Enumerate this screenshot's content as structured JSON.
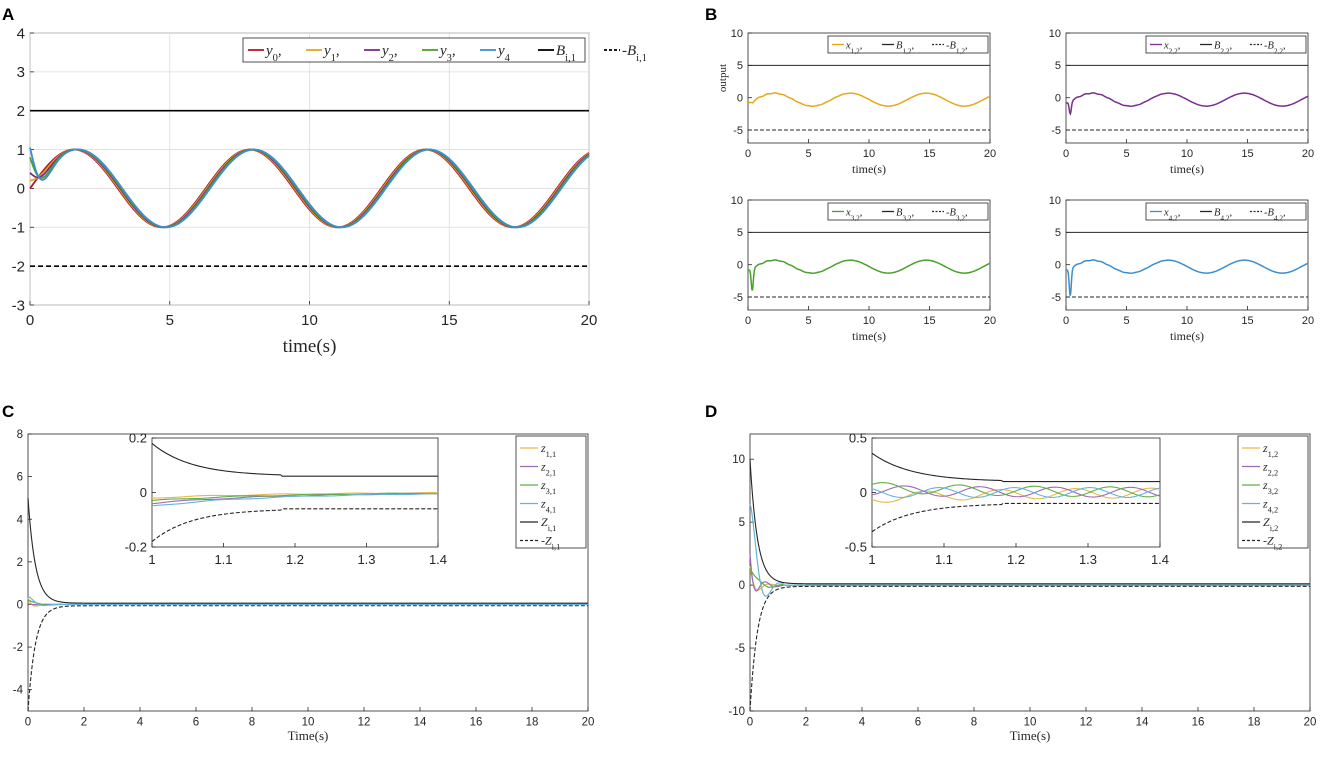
{
  "chart_data": [
    {
      "id": "A",
      "panel_letter": "A",
      "type": "line",
      "xlabel": "time(s)",
      "ylabel": "",
      "xlim": [
        0,
        20
      ],
      "ylim": [
        -3,
        4
      ],
      "xticks": [
        "0",
        "5",
        "10",
        "15",
        "20"
      ],
      "yticks": [
        "-3",
        "-2",
        "-1",
        "0",
        "1",
        "2",
        "3",
        "4"
      ],
      "grid": true,
      "legend_position": "top-right",
      "legend_entries": [
        "y0,",
        "y1,",
        "y2,",
        "y3,",
        "y4",
        "Bi,1",
        "-Bi,1"
      ],
      "series": [
        {
          "name": "y0",
          "color": "#b2182b",
          "style": "solid",
          "formula": "sin(t)",
          "x_start": 0,
          "x_end": 20
        },
        {
          "name": "y1",
          "color": "#e6a817",
          "style": "solid",
          "formula": "sin(t)",
          "x_start": 0,
          "x_end": 20,
          "initial_value": 0.2
        },
        {
          "name": "y2",
          "color": "#7b2d8e",
          "style": "solid",
          "formula": "sin(t)",
          "x_start": 0,
          "x_end": 20,
          "initial_value": 0.4
        },
        {
          "name": "y3",
          "color": "#4aa02c",
          "style": "solid",
          "formula": "sin(t)",
          "x_start": 0,
          "x_end": 20,
          "initial_value": 0.8
        },
        {
          "name": "y4",
          "color": "#3a8fcf",
          "style": "solid",
          "formula": "sin(t)",
          "x_start": 0,
          "x_end": 20,
          "initial_value": 1.05
        },
        {
          "name": "Bi,1",
          "color": "#000000",
          "style": "solid",
          "constant": 2
        },
        {
          "name": "-Bi,1",
          "color": "#000000",
          "style": "dashed",
          "constant": -2
        }
      ]
    },
    {
      "id": "B",
      "panel_letter": "B",
      "type": "line",
      "subplots": [
        {
          "ylabel": "output",
          "xlabel": "time(s)",
          "xlim": [
            0,
            20
          ],
          "ylim": [
            -7,
            10
          ],
          "xticks": [
            "0",
            "5",
            "10",
            "15",
            "20"
          ],
          "yticks": [
            "-5",
            "0",
            "5",
            "10"
          ],
          "legend_entries": [
            "x1,2,",
            "B1,2,",
            "-B1,2,"
          ],
          "signal": {
            "name": "x1,2",
            "color": "#e6a817",
            "amplitude": 1,
            "offset": -0.3,
            "transient_min": -0.8
          },
          "bounds": [
            5,
            -5
          ]
        },
        {
          "ylabel": "",
          "xlabel": "time(s)",
          "xlim": [
            0,
            20
          ],
          "ylim": [
            -7,
            10
          ],
          "xticks": [
            "0",
            "5",
            "10",
            "15",
            "20"
          ],
          "yticks": [
            "-5",
            "0",
            "5",
            "10"
          ],
          "legend_entries": [
            "x2,2,",
            "B2,2,",
            "-B2,2,"
          ],
          "signal": {
            "name": "x2,2",
            "color": "#7b2d8e",
            "amplitude": 1,
            "offset": -0.3,
            "transient_min": -2.5
          },
          "bounds": [
            5,
            -5
          ]
        },
        {
          "ylabel": "",
          "xlabel": "time(s)",
          "xlim": [
            0,
            20
          ],
          "ylim": [
            -7,
            10
          ],
          "xticks": [
            "0",
            "5",
            "10",
            "15",
            "20"
          ],
          "yticks": [
            "-5",
            "0",
            "5",
            "10"
          ],
          "legend_entries": [
            "x3,2,",
            "B3,2,",
            "-B3,2,"
          ],
          "signal": {
            "name": "x3,2",
            "color": "#4aa02c",
            "amplitude": 1,
            "offset": -0.3,
            "transient_min": -4
          },
          "bounds": [
            5,
            -5
          ]
        },
        {
          "ylabel": "",
          "xlabel": "time(s)",
          "xlim": [
            0,
            20
          ],
          "ylim": [
            -7,
            10
          ],
          "xticks": [
            "0",
            "5",
            "10",
            "15",
            "20"
          ],
          "yticks": [
            "-5",
            "0",
            "5",
            "10"
          ],
          "legend_entries": [
            "x4,2,",
            "B4,2,",
            "-B4,2,"
          ],
          "signal": {
            "name": "x4,2",
            "color": "#3a8fcf",
            "amplitude": 1,
            "offset": -0.3,
            "transient_min": -4.8
          },
          "bounds": [
            5,
            -5
          ]
        }
      ]
    },
    {
      "id": "C",
      "panel_letter": "C",
      "type": "line",
      "xlabel": "Time(s)",
      "xlim": [
        0,
        20
      ],
      "ylim": [
        -5,
        8
      ],
      "xticks": [
        "0",
        "2",
        "4",
        "6",
        "8",
        "10",
        "12",
        "14",
        "16",
        "18",
        "20"
      ],
      "yticks": [
        "-4",
        "-2",
        "0",
        "2",
        "4",
        "6",
        "8"
      ],
      "legend_position": "top-right",
      "legend_entries": [
        "z1,1",
        "z2,1",
        "z3,1",
        "z4,1",
        "Zi,1",
        "-Zi,1"
      ],
      "bound_initial": 5,
      "bound_final": 0.06,
      "errors_initial": [
        0.3,
        0.1,
        0.5,
        0.4
      ],
      "inset": {
        "xlim": [
          1,
          1.4
        ],
        "ylim": [
          -0.2,
          0.2
        ],
        "xticks": [
          "1",
          "1.1",
          "1.2",
          "1.3",
          "1.4"
        ],
        "yticks": [
          "-0.2",
          "0",
          "0.2"
        ],
        "bound_start": 0.18,
        "bound_end": 0.06,
        "error_values": [
          -0.02,
          -0.04,
          -0.03,
          -0.05
        ]
      }
    },
    {
      "id": "D",
      "panel_letter": "D",
      "type": "line",
      "xlabel": "Time(s)",
      "xlim": [
        0,
        20
      ],
      "ylim": [
        -10,
        12
      ],
      "xticks": [
        "0",
        "2",
        "4",
        "6",
        "8",
        "10",
        "12",
        "14",
        "16",
        "18",
        "20"
      ],
      "yticks": [
        "-10",
        "-5",
        "0",
        "5",
        "10"
      ],
      "legend_position": "top-right",
      "legend_entries": [
        "z1,2",
        "z2,2",
        "z3,2",
        "z4,2",
        "Zi,2",
        "-Zi,2"
      ],
      "bound_initial": 10,
      "bound_final": 0.1,
      "errors_initial": [
        1.5,
        5,
        3,
        7
      ],
      "inset": {
        "xlim": [
          1,
          1.4
        ],
        "ylim": [
          -0.5,
          0.5
        ],
        "xticks": [
          "1",
          "1.1",
          "1.2",
          "1.3",
          "1.4"
        ],
        "yticks": [
          "-0.5",
          "0",
          "0.5"
        ],
        "bound_start": 0.36,
        "bound_end": 0.1,
        "error_values": [
          -0.05,
          0.02,
          0.05,
          0.0
        ]
      }
    }
  ],
  "colors": {
    "z1": "#e6b84a",
    "z2": "#a068b8",
    "z3": "#5fb043",
    "z4": "#63b5dc",
    "bound": "#262626"
  }
}
